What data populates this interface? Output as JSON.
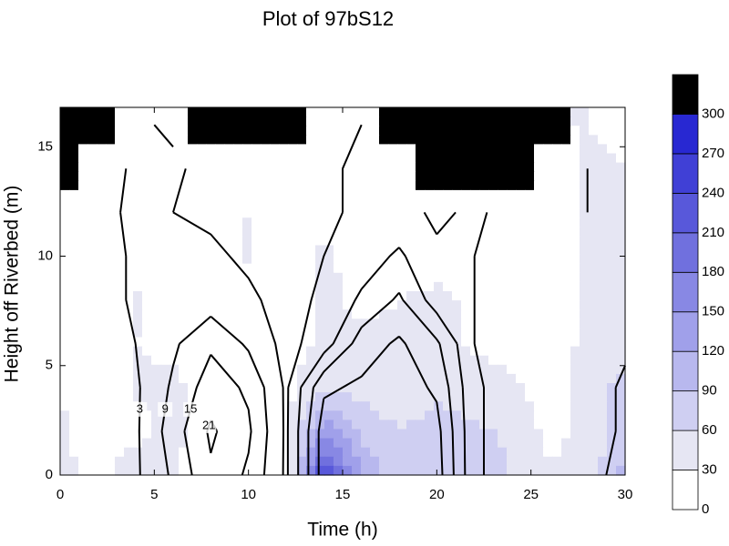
{
  "chart_data": {
    "type": "contour",
    "title": "Plot of 97bS12",
    "x_label": "Time (h)",
    "y_label": "Height off Riverbed (m)",
    "x": [
      0,
      2,
      4,
      6,
      8,
      10,
      12,
      14,
      16,
      18,
      20,
      22,
      24,
      26,
      28,
      30
    ],
    "y": [
      0,
      2,
      4,
      6,
      8,
      10,
      12,
      14,
      16
    ],
    "xlim": [
      0,
      30
    ],
    "ylim": [
      0,
      16.8
    ],
    "xticks": [
      0,
      5,
      10,
      15,
      20,
      25,
      30
    ],
    "yticks": [
      0,
      5,
      10,
      15
    ],
    "levels": [
      0,
      30,
      60,
      90,
      120,
      150,
      180,
      210,
      240,
      270,
      300
    ],
    "colors": [
      "#ffffff",
      "#e6e6f3",
      "#cfcff2",
      "#b8b8ee",
      "#a0a0ea",
      "#8888e4",
      "#7070de",
      "#5858da",
      "#4040d6",
      "#2828d2",
      "#000000"
    ],
    "z": [
      [
        40,
        20,
        50,
        35,
        10,
        5,
        20,
        250,
        120,
        70,
        80,
        70,
        60,
        35,
        40,
        100
      ],
      [
        35,
        10,
        20,
        40,
        5,
        5,
        15,
        140,
        80,
        60,
        70,
        65,
        55,
        20,
        40,
        80
      ],
      [
        30,
        5,
        35,
        40,
        10,
        5,
        20,
        60,
        50,
        40,
        55,
        45,
        35,
        15,
        45,
        70
      ],
      [
        20,
        5,
        30,
        20,
        5,
        5,
        10,
        40,
        35,
        35,
        40,
        25,
        20,
        10,
        40,
        50
      ],
      [
        10,
        5,
        35,
        15,
        5,
        10,
        5,
        35,
        25,
        30,
        35,
        25,
        10,
        10,
        35,
        40
      ],
      [
        5,
        5,
        20,
        10,
        5,
        35,
        5,
        35,
        20,
        20,
        20,
        20,
        10,
        10,
        40,
        35
      ],
      [
        5,
        5,
        10,
        10,
        5,
        30,
        5,
        25,
        15,
        20,
        10,
        10,
        10,
        5,
        35,
        30
      ],
      [
        null,
        10,
        10,
        15,
        5,
        20,
        5,
        15,
        10,
        15,
        null,
        null,
        null,
        5,
        40,
        30
      ],
      [
        null,
        null,
        20,
        10,
        null,
        null,
        null,
        10,
        10,
        null,
        null,
        null,
        null,
        null,
        30,
        20
      ]
    ],
    "line_levels": [
      3,
      9,
      15,
      21
    ],
    "line_z": [
      [
        0,
        0,
        2,
        10,
        20,
        14,
        2,
        24,
        26,
        24,
        24,
        4,
        0,
        0,
        0,
        6
      ],
      [
        0,
        0,
        2,
        12,
        22,
        16,
        2,
        24,
        25,
        24,
        23,
        4,
        0,
        0,
        0,
        4
      ],
      [
        0,
        0,
        2,
        10,
        18,
        14,
        2,
        20,
        22,
        24,
        20,
        4,
        0,
        0,
        0,
        4
      ],
      [
        0,
        0,
        3,
        8,
        14,
        8,
        1,
        6,
        18,
        22,
        16,
        3,
        0,
        0,
        0,
        2
      ],
      [
        0,
        0,
        4,
        6,
        6,
        4,
        1,
        4,
        10,
        16,
        6,
        3,
        0,
        0,
        1,
        1
      ],
      [
        0,
        0,
        4,
        5,
        4,
        2,
        0,
        3,
        6,
        10,
        4,
        3,
        0,
        0,
        2,
        1
      ],
      [
        0,
        0,
        5,
        3,
        2,
        1,
        0,
        2,
        4,
        5,
        2,
        4,
        1,
        0,
        3,
        1
      ],
      [
        null,
        0,
        4,
        4,
        1,
        2,
        0,
        2,
        4,
        3,
        null,
        null,
        null,
        2,
        3,
        1
      ],
      [
        null,
        null,
        4,
        2,
        null,
        null,
        null,
        2,
        3,
        null,
        null,
        null,
        null,
        null,
        2,
        1
      ]
    ]
  }
}
